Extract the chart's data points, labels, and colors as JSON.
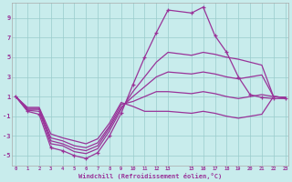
{
  "background_color": "#c8ecec",
  "grid_color": "#99cccc",
  "line_color": "#993399",
  "xlabel": "Windchill (Refroidissement éolien,°C)",
  "xlim": [
    -0.3,
    23.3
  ],
  "ylim": [
    -6.0,
    10.5
  ],
  "yticks": [
    -5,
    -3,
    -1,
    1,
    3,
    5,
    7,
    9
  ],
  "xticks": [
    0,
    1,
    2,
    3,
    4,
    5,
    6,
    7,
    8,
    9,
    10,
    11,
    12,
    13,
    15,
    16,
    17,
    18,
    19,
    20,
    21,
    22,
    23
  ],
  "series": [
    {
      "x": [
        0,
        1,
        2,
        3,
        4,
        5,
        6,
        7,
        8,
        9,
        10,
        11,
        12,
        13,
        15,
        16,
        17,
        18,
        19,
        20,
        21,
        22,
        23
      ],
      "y": [
        1.0,
        -0.5,
        -0.8,
        -4.2,
        -4.5,
        -5.0,
        -5.3,
        -4.7,
        -3.0,
        -0.7,
        2.2,
        5.0,
        7.5,
        9.8,
        9.5,
        10.1,
        7.2,
        5.5,
        3.0,
        1.2,
        0.9,
        0.8,
        0.8
      ],
      "marker": true
    },
    {
      "x": [
        0,
        1,
        2,
        3,
        4,
        5,
        6,
        7,
        8,
        9,
        10,
        11,
        12,
        13,
        15,
        16,
        17,
        18,
        19,
        20,
        21,
        22,
        23
      ],
      "y": [
        1.0,
        -0.4,
        -0.5,
        -3.8,
        -4.0,
        -4.6,
        -4.8,
        -4.3,
        -2.5,
        -0.3,
        1.5,
        3.0,
        4.5,
        5.5,
        5.2,
        5.5,
        5.3,
        5.0,
        4.8,
        4.5,
        4.2,
        1.0,
        0.9
      ],
      "marker": false
    },
    {
      "x": [
        0,
        1,
        2,
        3,
        4,
        5,
        6,
        7,
        8,
        9,
        10,
        11,
        12,
        13,
        15,
        16,
        17,
        18,
        19,
        20,
        21,
        22,
        23
      ],
      "y": [
        1.0,
        -0.3,
        -0.3,
        -3.5,
        -3.8,
        -4.3,
        -4.5,
        -4.0,
        -2.2,
        -0.1,
        1.0,
        2.0,
        3.0,
        3.5,
        3.3,
        3.5,
        3.3,
        3.0,
        2.8,
        3.0,
        3.2,
        1.0,
        0.9
      ],
      "marker": false
    },
    {
      "x": [
        0,
        1,
        2,
        3,
        4,
        5,
        6,
        7,
        8,
        9,
        10,
        11,
        12,
        13,
        15,
        16,
        17,
        18,
        19,
        20,
        21,
        22,
        23
      ],
      "y": [
        1.0,
        -0.2,
        -0.2,
        -3.2,
        -3.5,
        -4.0,
        -4.2,
        -3.7,
        -2.0,
        0.2,
        0.5,
        1.0,
        1.5,
        1.5,
        1.3,
        1.5,
        1.3,
        1.0,
        0.8,
        1.0,
        1.2,
        1.0,
        0.9
      ],
      "marker": false
    },
    {
      "x": [
        0,
        1,
        2,
        3,
        4,
        5,
        6,
        7,
        8,
        9,
        10,
        11,
        12,
        13,
        15,
        16,
        17,
        18,
        19,
        20,
        21,
        22,
        23
      ],
      "y": [
        1.0,
        -0.1,
        -0.1,
        -2.8,
        -3.2,
        -3.5,
        -3.8,
        -3.3,
        -1.7,
        0.4,
        0.0,
        -0.5,
        -0.5,
        -0.5,
        -0.7,
        -0.5,
        -0.7,
        -1.0,
        -1.2,
        -1.0,
        -0.8,
        1.0,
        0.9
      ],
      "marker": false
    }
  ]
}
